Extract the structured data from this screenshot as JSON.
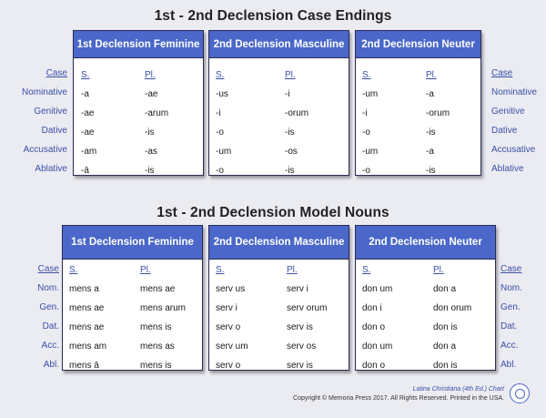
{
  "section1": {
    "title": "1st - 2nd Declension Case Endings",
    "cases": [
      "Case",
      "Nominative",
      "Genitive",
      "Dative",
      "Accusative",
      "Ablative"
    ],
    "panels": [
      {
        "header": "1st Declension Feminine",
        "sing": "S.",
        "plur": "Pl.",
        "rows": [
          [
            "-a",
            "-ae"
          ],
          [
            "-ae",
            "-arum"
          ],
          [
            "-ae",
            "-is"
          ],
          [
            "-am",
            "-as"
          ],
          [
            "-ā",
            "-is"
          ]
        ]
      },
      {
        "header": "2nd Declension Masculine",
        "sing": "S.",
        "plur": "Pl.",
        "rows": [
          [
            "-us",
            "-i"
          ],
          [
            "-i",
            "-orum"
          ],
          [
            "-o",
            "-is"
          ],
          [
            "-um",
            "-os"
          ],
          [
            "-o",
            "-is"
          ]
        ]
      },
      {
        "header": "2nd Declension Neuter",
        "sing": "S.",
        "plur": "Pl.",
        "rows": [
          [
            "-um",
            "-a"
          ],
          [
            "-i",
            "-orum"
          ],
          [
            "-o",
            "-is"
          ],
          [
            "-um",
            "-a"
          ],
          [
            "-o",
            "-is"
          ]
        ]
      }
    ]
  },
  "section2": {
    "title": "1st - 2nd Declension Model Nouns",
    "cases": [
      "Case",
      "Nom.",
      "Gen.",
      "Dat.",
      "Acc.",
      "Abl."
    ],
    "panels": [
      {
        "header": "1st Declension Feminine",
        "sing": "S.",
        "plur": "Pl.",
        "rows": [
          [
            "mens a",
            "mens ae"
          ],
          [
            "mens ae",
            "mens arum"
          ],
          [
            "mens ae",
            "mens is"
          ],
          [
            "mens am",
            "mens as"
          ],
          [
            "mens ā",
            "mens is"
          ]
        ]
      },
      {
        "header": "2nd Declension Masculine",
        "sing": "S.",
        "plur": "Pl.",
        "rows": [
          [
            "serv us",
            "serv i"
          ],
          [
            "serv i",
            "serv orum"
          ],
          [
            "serv o",
            "serv is"
          ],
          [
            "serv um",
            "serv os"
          ],
          [
            "serv o",
            "serv is"
          ]
        ]
      },
      {
        "header": "2nd Declension Neuter",
        "sing": "S.",
        "plur": "Pl.",
        "rows": [
          [
            "don um",
            "don a"
          ],
          [
            "don i",
            "don orum"
          ],
          [
            "don o",
            "don is"
          ],
          [
            "don um",
            "don a"
          ],
          [
            "don o",
            "don is"
          ]
        ]
      }
    ]
  },
  "footer": {
    "chart_name": "Latina Christiana (4th Ed.) Chart",
    "copyright": "Copyright © Memoria Press 2017. All Rights Reserved. Printed in the USA."
  }
}
